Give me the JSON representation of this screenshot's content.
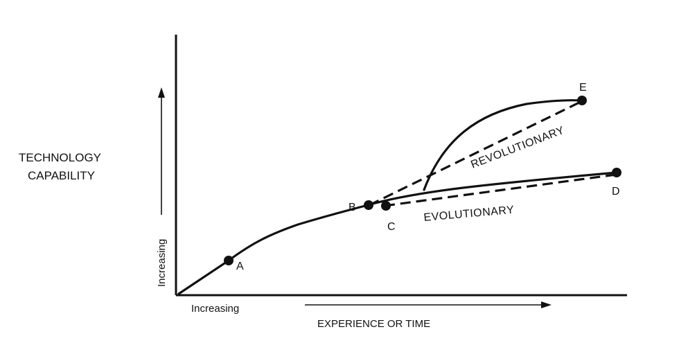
{
  "y_label": {
    "line1": "TECHNOLOGY",
    "line2": "CAPABILITY"
  },
  "y_axis_arrow_label": "Increasing",
  "x_axis_arrow_label": "Increasing",
  "x_label": "EXPERIENCE OR TIME",
  "points": {
    "A": "A",
    "B": "B",
    "C": "C",
    "D": "D",
    "E": "E"
  },
  "curves": {
    "revolutionary": "REVOLUTIONARY",
    "evolutionary": "EVOLUTIONARY"
  }
}
